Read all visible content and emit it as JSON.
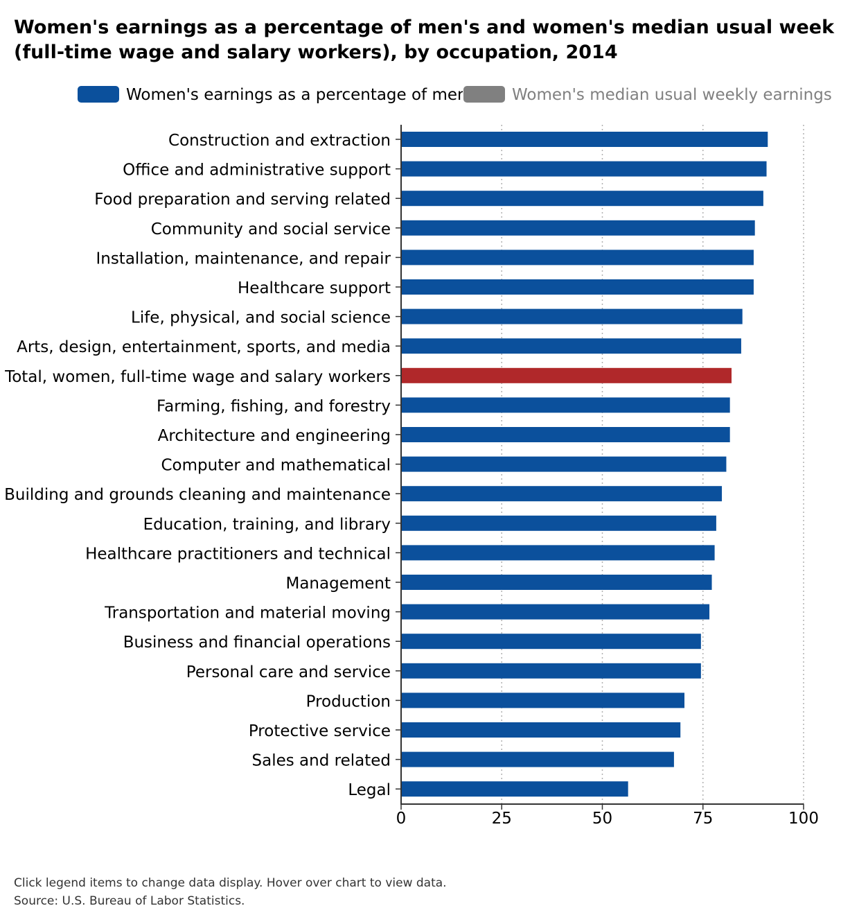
{
  "title_line1": "Women's earnings as a percentage of men's and women's median usual week",
  "title_line2": "(full-time wage and salary workers), by occupation, 2014",
  "legend": [
    {
      "label": "Women's earnings as a percentage of men's",
      "color": "#0b509c",
      "active": true
    },
    {
      "label": "Women's median usual weekly earnings",
      "color": "#808080",
      "active": false
    }
  ],
  "footer": {
    "note": "Click legend items to change data display. Hover over chart to view data.",
    "source": "Source: U.S. Bureau of Labor Statistics."
  },
  "chart_data": {
    "type": "bar",
    "orientation": "horizontal",
    "categories": [
      "Construction and extraction",
      "Office and administrative support",
      "Food preparation and serving related",
      "Community and social service",
      "Installation, maintenance, and repair",
      "Healthcare support",
      "Life, physical, and social science",
      "Arts, design, entertainment, sports, and media",
      "Total, women, full-time wage and salary workers",
      "Farming, fishing, and forestry",
      "Architecture and engineering",
      "Computer and mathematical",
      "Building and grounds cleaning and maintenance",
      "Education, training, and library",
      "Healthcare practitioners and technical",
      "Management",
      "Transportation and material moving",
      "Business and financial operations",
      "Personal care and service",
      "Production",
      "Protective service",
      "Sales and related",
      "Legal"
    ],
    "values": [
      91.1,
      90.8,
      90.0,
      87.9,
      87.6,
      87.6,
      84.8,
      84.5,
      82.1,
      81.7,
      81.7,
      80.8,
      79.7,
      78.3,
      77.9,
      77.2,
      76.6,
      74.5,
      74.5,
      70.4,
      69.4,
      67.8,
      56.4
    ],
    "highlight_category": "Total, women, full-time wage and salary workers",
    "bar_color": "#0b509c",
    "highlight_color": "#b0282a",
    "xlim": [
      0,
      100
    ],
    "xticks": [
      0,
      25,
      50,
      75,
      100
    ],
    "grid": "vertical dotted",
    "legend_position": "top"
  }
}
